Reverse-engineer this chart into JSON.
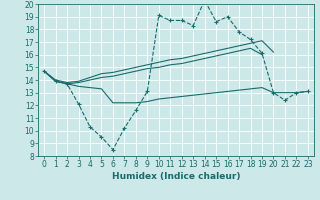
{
  "xlabel": "Humidex (Indice chaleur)",
  "x_values": [
    0,
    1,
    2,
    3,
    4,
    5,
    6,
    7,
    8,
    9,
    10,
    11,
    12,
    13,
    14,
    15,
    16,
    17,
    18,
    19,
    20,
    21,
    22,
    23
  ],
  "line_zigzag": [
    14.7,
    13.9,
    13.7,
    12.1,
    10.3,
    9.5,
    8.5,
    10.2,
    11.6,
    13.1,
    19.1,
    18.7,
    18.7,
    18.3,
    20.3,
    18.6,
    19.0,
    17.8,
    17.2,
    16.1,
    13.0,
    12.4,
    13.0,
    13.1
  ],
  "line_upper": [
    14.7,
    14.0,
    13.8,
    13.9,
    14.2,
    14.5,
    14.6,
    14.8,
    15.0,
    15.2,
    15.4,
    15.6,
    15.7,
    15.9,
    16.1,
    16.3,
    16.5,
    16.7,
    16.9,
    17.1,
    16.2,
    null,
    null,
    null
  ],
  "line_mid": [
    14.7,
    13.9,
    13.7,
    13.8,
    14.0,
    14.2,
    14.3,
    14.5,
    14.7,
    14.9,
    15.0,
    15.2,
    15.3,
    15.5,
    15.7,
    15.9,
    16.1,
    16.3,
    16.5,
    16.0,
    null,
    null,
    null,
    null
  ],
  "line_lower": [
    14.7,
    13.9,
    13.7,
    13.5,
    13.4,
    13.3,
    12.2,
    12.2,
    12.2,
    12.3,
    12.5,
    12.6,
    12.7,
    12.8,
    12.9,
    13.0,
    13.1,
    13.2,
    13.3,
    13.4,
    13.0,
    13.0,
    13.0,
    13.1
  ],
  "color": "#1a6b6b",
  "bg_color": "#cce8e8",
  "grid_color": "#ffffff",
  "ylim": [
    8,
    20
  ],
  "xlim": [
    -0.5,
    23.5
  ],
  "yticks": [
    8,
    9,
    10,
    11,
    12,
    13,
    14,
    15,
    16,
    17,
    18,
    19,
    20
  ],
  "xtick_labels": [
    "0",
    "1",
    "2",
    "3",
    "4",
    "5",
    "6",
    "7",
    "8",
    "9",
    "10",
    "11",
    "12",
    "13",
    "14",
    "15",
    "16",
    "17",
    "18",
    "19",
    "20",
    "21",
    "22",
    "23"
  ],
  "tick_fontsize": 5.5,
  "xlabel_fontsize": 6.5
}
